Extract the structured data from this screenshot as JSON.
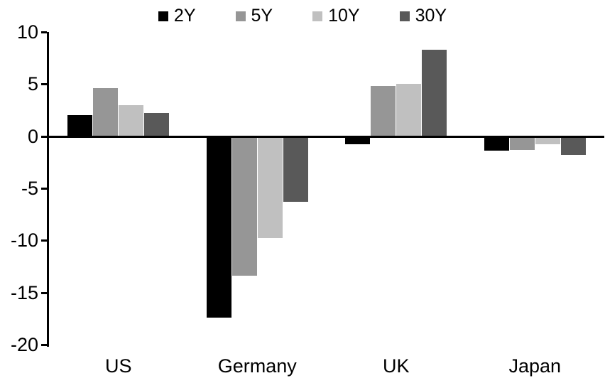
{
  "chart_data": {
    "type": "bar",
    "title": "",
    "xlabel": "",
    "ylabel": "",
    "categories": [
      "US",
      "Germany",
      "UK",
      "Japan"
    ],
    "series": [
      {
        "name": "2Y",
        "color": "#000000",
        "values": [
          2.0,
          -17.4,
          -0.8,
          -1.4
        ]
      },
      {
        "name": "5Y",
        "color": "#969696",
        "values": [
          4.6,
          -13.4,
          4.8,
          -1.3
        ]
      },
      {
        "name": "10Y",
        "color": "#c0c0c0",
        "values": [
          3.0,
          -9.8,
          5.0,
          -0.8
        ]
      },
      {
        "name": "30Y",
        "color": "#595959",
        "values": [
          2.2,
          -6.3,
          8.3,
          -1.8
        ]
      }
    ],
    "ylim": [
      -20,
      10
    ],
    "yticks": [
      10,
      5,
      0,
      -5,
      -10,
      -15,
      -20
    ],
    "legend_position": "top-center",
    "grid": false,
    "axis_color": "#000000",
    "background_color": "#ffffff"
  }
}
